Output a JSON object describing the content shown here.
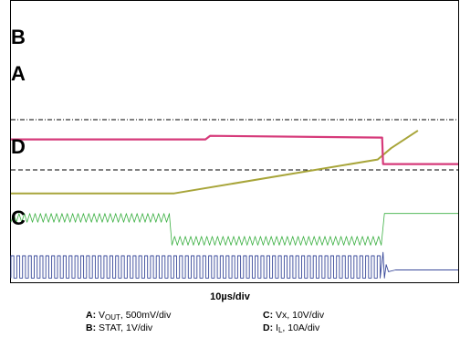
{
  "chart_data": {
    "type": "line",
    "title": "",
    "xlabel": "",
    "ylabel": "",
    "timebase_label": "10µs/div",
    "grid": false,
    "colors": {
      "A": "#a8a53a",
      "B": "#d63a7a",
      "C": "#3a4a9a",
      "D": "#3cb043",
      "reference": "#000000",
      "plot_border": "#000000"
    },
    "channel_labels": [
      "B",
      "A",
      "D",
      "C"
    ],
    "legend": [
      {
        "id": "A",
        "key": "A:",
        "quantity": "V",
        "subscript": "OUT",
        "scale": ", 500mV/div"
      },
      {
        "id": "C",
        "key": "C:",
        "quantity": "Vx",
        "subscript": "",
        "scale": ", 10V/div"
      },
      {
        "id": "B",
        "key": "B:",
        "quantity": "STAT",
        "subscript": "",
        "scale": ", 1V/div"
      },
      {
        "id": "D",
        "key": "D:",
        "quantity": "I",
        "subscript": "L",
        "scale": ", 10A/div"
      }
    ],
    "time_divisions": 10,
    "series": [
      {
        "id": "B",
        "x": [
          0,
          4.35,
          4.45,
          8.3,
          8.32,
          10
        ],
        "y": [
          4.05,
          4.05,
          4.15,
          4.1,
          3.35,
          3.35
        ]
      },
      {
        "id": "A",
        "x": [
          0,
          3.65,
          8.2,
          8.5,
          9.1
        ],
        "y": [
          2.52,
          2.52,
          3.48,
          3.8,
          4.3
        ]
      },
      {
        "id": "C",
        "switch_start": 0,
        "switch_end": 8.3,
        "high": 0.75,
        "low": 0.12,
        "period": 0.13,
        "settle_level": 0.35
      },
      {
        "id": "D",
        "ripple_start": 0,
        "ripple_end": 8.3,
        "upper_band": [
          1.7,
          1.95
        ],
        "step_time": 3.55,
        "lower_band": [
          1.05,
          1.3
        ],
        "period": 0.12,
        "final_level": 1.95
      }
    ]
  }
}
